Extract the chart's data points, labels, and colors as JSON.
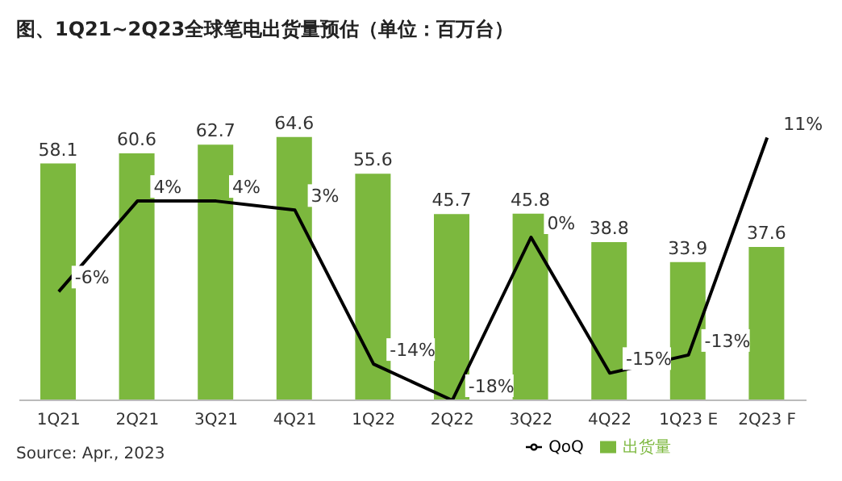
{
  "chart_data": {
    "type": "bar",
    "title": "图、1Q21~2Q23全球笔电出货量预估（单位：百万台）",
    "annotations": [
      "Source: Apr., 2023"
    ],
    "categories": [
      "1Q21",
      "2Q21",
      "3Q21",
      "4Q21",
      "1Q22",
      "2Q22",
      "3Q22",
      "4Q22",
      "1Q23 E",
      "2Q23 F"
    ],
    "series": [
      {
        "name": "出货量",
        "color": "#7cb83e",
        "values": [
          58.1,
          60.6,
          62.7,
          64.6,
          55.6,
          45.7,
          45.8,
          38.8,
          33.9,
          37.6
        ]
      },
      {
        "name": "QoQ",
        "type": "line",
        "axis": "y2",
        "color": "#000000",
        "values": [
          -6,
          4,
          4,
          3,
          -14,
          -18,
          0,
          -15,
          -13,
          11
        ],
        "value_labels": [
          "-6%",
          "4%",
          "4%",
          "3%",
          "-14%",
          "-18%",
          "0%",
          "-15%",
          "-13%",
          "11%"
        ]
      }
    ],
    "data_labels": true,
    "legend": "bottom",
    "grid": false,
    "marker": "none",
    "line_style": "solid",
    "tick_labels": "x"
  }
}
